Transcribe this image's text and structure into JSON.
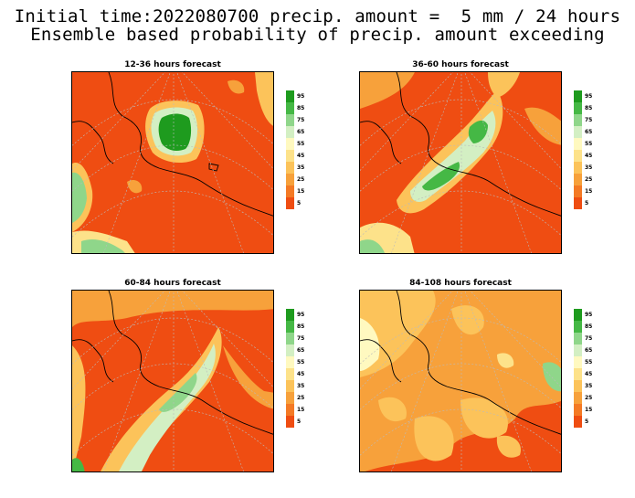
{
  "title": {
    "line1": "Initial time:2022080700 precip. amount =  5 mm / 24 hours",
    "line2": "Ensemble based probability of precip. amount exceeding"
  },
  "legend": {
    "labels": [
      "95",
      "85",
      "75",
      "65",
      "55",
      "45",
      "35",
      "25",
      "15",
      "5"
    ],
    "colors": [
      "#1e9b1e",
      "#45b845",
      "#8fd68a",
      "#d3efc3",
      "#fff9c0",
      "#fde28a",
      "#fcc35a",
      "#f7a13b",
      "#f47a25",
      "#ef4d12"
    ]
  },
  "panels": [
    {
      "title": "12-36 hours forecast"
    },
    {
      "title": "36-60 hours forecast"
    },
    {
      "title": "60-84 hours forecast"
    },
    {
      "title": "84-108 hours forecast"
    }
  ]
}
